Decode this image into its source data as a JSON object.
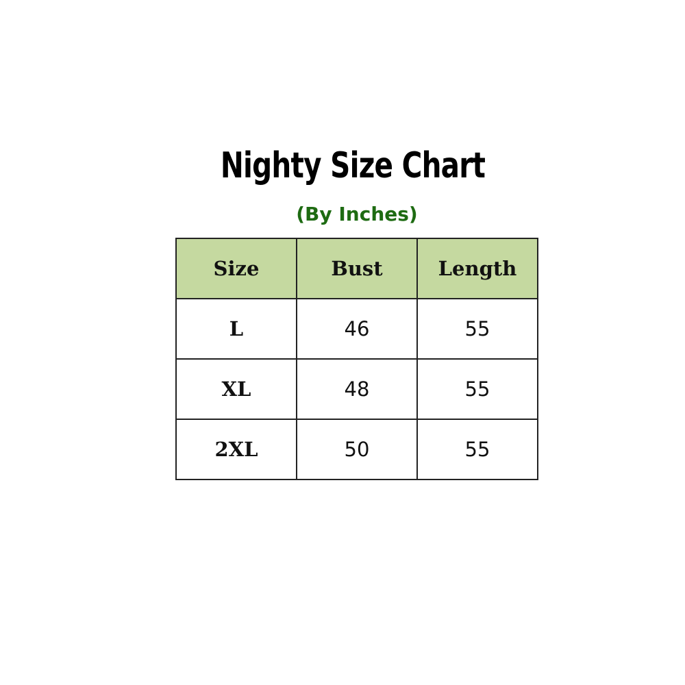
{
  "title": "Nighty Size Chart",
  "subtitle": "(By Inches)",
  "header_color": "#c5d9a0",
  "subtitle_color": "#1e6b12",
  "table": {
    "headers": [
      "Size",
      "Bust",
      "Length"
    ],
    "rows": [
      [
        "L",
        "46",
        "55"
      ],
      [
        "XL",
        "48",
        "55"
      ],
      [
        "2XL",
        "50",
        "55"
      ]
    ]
  }
}
